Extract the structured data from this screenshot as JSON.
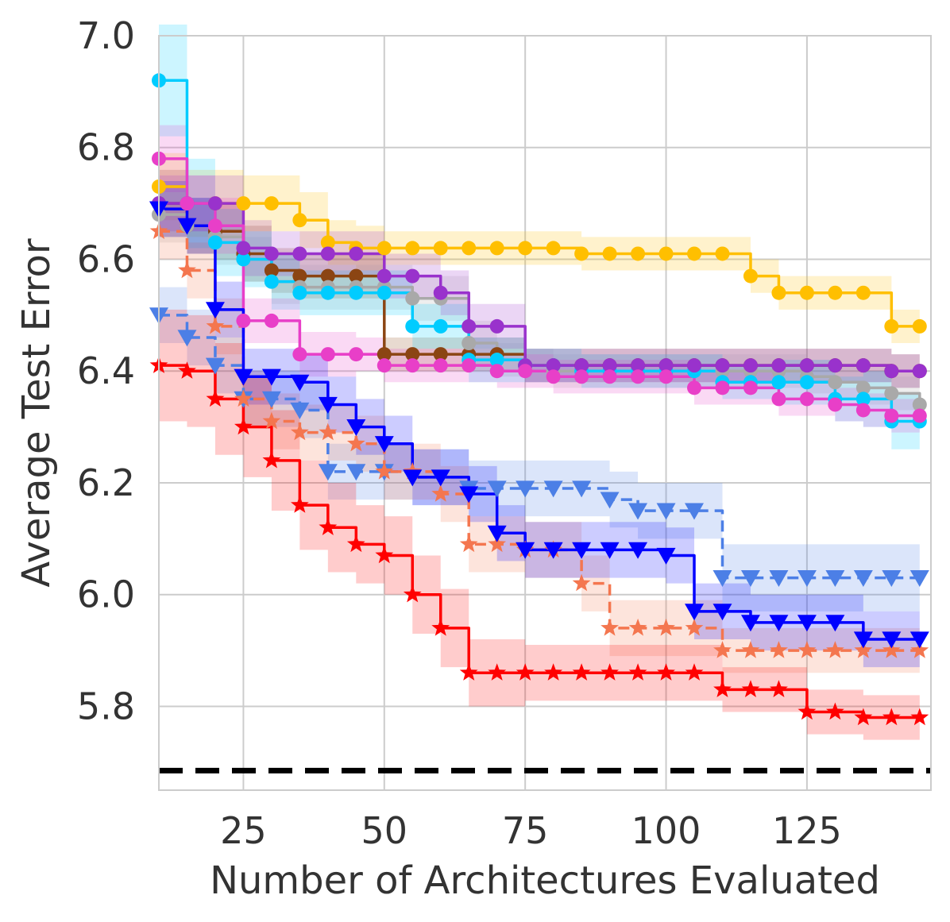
{
  "chart_data": {
    "type": "line",
    "title": "",
    "xlabel": "Number of Architectures Evaluated",
    "ylabel": "Average Test Error",
    "xlim": [
      10,
      147
    ],
    "ylim": [
      5.65,
      7.0
    ],
    "xticks": [
      25,
      50,
      75,
      100,
      125
    ],
    "yticks": [
      5.8,
      6.0,
      6.2,
      6.4,
      6.6,
      6.8,
      7.0
    ],
    "xtick_labels": [
      "25",
      "50",
      "75",
      "100",
      "125"
    ],
    "ytick_labels": [
      "5.8",
      "6.0",
      "6.2",
      "6.4",
      "6.6",
      "6.8",
      "7.0"
    ],
    "grid": true,
    "x": [
      10,
      15,
      20,
      25,
      30,
      35,
      40,
      45,
      50,
      55,
      60,
      65,
      70,
      75,
      80,
      85,
      90,
      95,
      100,
      105,
      110,
      115,
      120,
      125,
      130,
      135,
      140,
      145
    ],
    "reference_line": {
      "y": 5.685,
      "color": "#000000",
      "style": "dashed"
    },
    "series": [
      {
        "name": "gold",
        "color": "#FFBF00",
        "marker": "circle",
        "dashed": false,
        "values": [
          6.73,
          6.7,
          6.7,
          6.7,
          6.7,
          6.67,
          6.63,
          6.62,
          6.62,
          6.62,
          6.62,
          6.62,
          6.62,
          6.62,
          6.62,
          6.61,
          6.61,
          6.61,
          6.61,
          6.61,
          6.61,
          6.57,
          6.54,
          6.54,
          6.54,
          6.54,
          6.48,
          6.48
        ],
        "band": [
          0.06,
          0.06,
          0.06,
          0.05,
          0.05,
          0.05,
          0.04,
          0.04,
          0.03,
          0.03,
          0.03,
          0.03,
          0.03,
          0.03,
          0.03,
          0.03,
          0.03,
          0.03,
          0.03,
          0.03,
          0.03,
          0.03,
          0.03,
          0.03,
          0.03,
          0.03,
          0.03,
          0.03
        ]
      },
      {
        "name": "brown",
        "color": "#8B4513",
        "marker": "circle",
        "dashed": false,
        "values": [
          6.7,
          6.66,
          6.65,
          6.61,
          6.58,
          6.57,
          6.57,
          6.57,
          6.43,
          6.43,
          6.43,
          6.43,
          6.43,
          6.41,
          6.41,
          6.41,
          6.41,
          6.41,
          6.41,
          6.41,
          6.41,
          6.41,
          6.41,
          6.41,
          6.41,
          6.41,
          6.4,
          6.4
        ],
        "band": [
          0.06,
          0.05,
          0.05,
          0.05,
          0.04,
          0.04,
          0.04,
          0.04,
          0.03,
          0.03,
          0.03,
          0.03,
          0.03,
          0.03,
          0.03,
          0.03,
          0.03,
          0.03,
          0.03,
          0.03,
          0.03,
          0.03,
          0.03,
          0.03,
          0.03,
          0.03,
          0.03,
          0.03
        ]
      },
      {
        "name": "gray",
        "color": "#A9A9A9",
        "marker": "circle",
        "dashed": false,
        "values": [
          6.68,
          6.66,
          6.64,
          6.6,
          6.56,
          6.55,
          6.55,
          6.55,
          6.55,
          6.53,
          6.53,
          6.45,
          6.42,
          6.41,
          6.4,
          6.4,
          6.4,
          6.4,
          6.4,
          6.4,
          6.4,
          6.4,
          6.4,
          6.39,
          6.38,
          6.37,
          6.36,
          6.34
        ],
        "band": [
          0.05,
          0.05,
          0.05,
          0.04,
          0.04,
          0.04,
          0.04,
          0.04,
          0.04,
          0.04,
          0.04,
          0.04,
          0.03,
          0.03,
          0.03,
          0.03,
          0.03,
          0.03,
          0.03,
          0.03,
          0.03,
          0.03,
          0.03,
          0.03,
          0.03,
          0.03,
          0.03,
          0.03
        ]
      },
      {
        "name": "cyan",
        "color": "#00CCFF",
        "marker": "circle",
        "dashed": false,
        "values": [
          6.92,
          6.7,
          6.63,
          6.6,
          6.56,
          6.54,
          6.54,
          6.54,
          6.54,
          6.48,
          6.48,
          6.42,
          6.42,
          6.41,
          6.41,
          6.4,
          6.4,
          6.4,
          6.4,
          6.4,
          6.38,
          6.38,
          6.38,
          6.38,
          6.35,
          6.35,
          6.31,
          6.31
        ],
        "band": [
          0.1,
          0.08,
          0.06,
          0.05,
          0.05,
          0.04,
          0.04,
          0.04,
          0.04,
          0.04,
          0.04,
          0.04,
          0.04,
          0.03,
          0.03,
          0.03,
          0.03,
          0.03,
          0.03,
          0.03,
          0.03,
          0.03,
          0.04,
          0.04,
          0.04,
          0.05,
          0.05,
          0.05
        ]
      },
      {
        "name": "purple",
        "color": "#9932CC",
        "marker": "circle",
        "dashed": false,
        "values": [
          6.7,
          6.7,
          6.7,
          6.62,
          6.61,
          6.61,
          6.61,
          6.61,
          6.57,
          6.57,
          6.54,
          6.48,
          6.48,
          6.41,
          6.41,
          6.41,
          6.41,
          6.41,
          6.41,
          6.41,
          6.41,
          6.41,
          6.41,
          6.41,
          6.41,
          6.41,
          6.4,
          6.4
        ],
        "band": [
          0.05,
          0.05,
          0.05,
          0.05,
          0.04,
          0.04,
          0.04,
          0.04,
          0.04,
          0.04,
          0.04,
          0.04,
          0.04,
          0.03,
          0.03,
          0.03,
          0.03,
          0.03,
          0.03,
          0.03,
          0.03,
          0.03,
          0.03,
          0.03,
          0.03,
          0.03,
          0.03,
          0.03
        ]
      },
      {
        "name": "magenta",
        "color": "#E83FC8",
        "marker": "circle",
        "dashed": false,
        "values": [
          6.78,
          6.7,
          6.66,
          6.49,
          6.49,
          6.43,
          6.43,
          6.43,
          6.41,
          6.41,
          6.41,
          6.41,
          6.4,
          6.4,
          6.39,
          6.39,
          6.39,
          6.39,
          6.39,
          6.37,
          6.37,
          6.37,
          6.35,
          6.35,
          6.34,
          6.33,
          6.32,
          6.32
        ],
        "band": [
          0.06,
          0.05,
          0.05,
          0.04,
          0.04,
          0.04,
          0.04,
          0.03,
          0.03,
          0.03,
          0.03,
          0.03,
          0.03,
          0.03,
          0.03,
          0.03,
          0.03,
          0.03,
          0.03,
          0.03,
          0.03,
          0.03,
          0.03,
          0.03,
          0.03,
          0.03,
          0.03,
          0.03
        ]
      },
      {
        "name": "light-blue",
        "color": "#4C7FE6",
        "marker": "triangle-down",
        "dashed": true,
        "values": [
          6.5,
          6.46,
          6.41,
          6.35,
          6.35,
          6.33,
          6.22,
          6.22,
          6.22,
          6.21,
          6.21,
          6.19,
          6.19,
          6.19,
          6.19,
          6.19,
          6.17,
          6.15,
          6.15,
          6.15,
          6.03,
          6.03,
          6.03,
          6.03,
          6.03,
          6.03,
          6.03,
          6.03
        ],
        "band": [
          0.05,
          0.05,
          0.05,
          0.05,
          0.05,
          0.05,
          0.05,
          0.05,
          0.05,
          0.05,
          0.05,
          0.05,
          0.05,
          0.05,
          0.05,
          0.05,
          0.05,
          0.05,
          0.05,
          0.05,
          0.06,
          0.06,
          0.06,
          0.06,
          0.06,
          0.06,
          0.06,
          0.06
        ]
      },
      {
        "name": "salmon",
        "color": "#F4764F",
        "marker": "star",
        "dashed": true,
        "values": [
          6.65,
          6.58,
          6.48,
          6.35,
          6.31,
          6.29,
          6.29,
          6.27,
          6.22,
          6.22,
          6.18,
          6.09,
          6.09,
          6.08,
          6.08,
          6.02,
          5.94,
          5.94,
          5.94,
          5.94,
          5.9,
          5.9,
          5.9,
          5.9,
          5.9,
          5.9,
          5.9,
          5.9
        ],
        "band": [
          0.05,
          0.05,
          0.05,
          0.05,
          0.05,
          0.05,
          0.05,
          0.05,
          0.05,
          0.05,
          0.05,
          0.05,
          0.05,
          0.05,
          0.05,
          0.05,
          0.05,
          0.05,
          0.05,
          0.05,
          0.04,
          0.04,
          0.04,
          0.04,
          0.04,
          0.04,
          0.04,
          0.04
        ]
      },
      {
        "name": "blue",
        "color": "#0000FF",
        "marker": "triangle-down",
        "dashed": false,
        "values": [
          6.69,
          6.66,
          6.51,
          6.39,
          6.39,
          6.38,
          6.34,
          6.3,
          6.27,
          6.21,
          6.21,
          6.18,
          6.11,
          6.08,
          6.08,
          6.08,
          6.08,
          6.08,
          6.07,
          5.97,
          5.97,
          5.95,
          5.95,
          5.95,
          5.95,
          5.92,
          5.92,
          5.92
        ],
        "band": [
          0.05,
          0.05,
          0.05,
          0.05,
          0.05,
          0.05,
          0.05,
          0.05,
          0.05,
          0.05,
          0.05,
          0.05,
          0.05,
          0.05,
          0.05,
          0.05,
          0.05,
          0.05,
          0.05,
          0.05,
          0.05,
          0.05,
          0.05,
          0.05,
          0.05,
          0.05,
          0.05,
          0.05
        ]
      },
      {
        "name": "red",
        "color": "#FF0000",
        "marker": "star",
        "dashed": false,
        "values": [
          6.41,
          6.4,
          6.35,
          6.3,
          6.24,
          6.16,
          6.12,
          6.09,
          6.07,
          6.0,
          5.94,
          5.86,
          5.86,
          5.86,
          5.86,
          5.86,
          5.86,
          5.86,
          5.86,
          5.86,
          5.83,
          5.83,
          5.83,
          5.79,
          5.79,
          5.78,
          5.78,
          5.78
        ],
        "band": [
          0.1,
          0.1,
          0.1,
          0.09,
          0.09,
          0.08,
          0.08,
          0.07,
          0.07,
          0.07,
          0.07,
          0.06,
          0.06,
          0.05,
          0.05,
          0.05,
          0.05,
          0.05,
          0.05,
          0.05,
          0.04,
          0.04,
          0.04,
          0.04,
          0.04,
          0.04,
          0.04,
          0.04
        ]
      }
    ]
  }
}
